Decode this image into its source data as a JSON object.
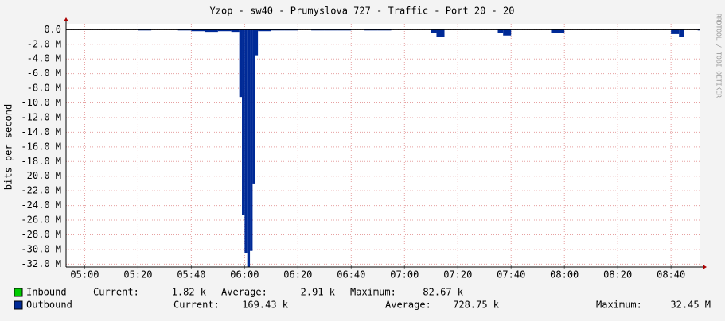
{
  "chart_data": {
    "type": "area",
    "title": "Yzop - sw40 - Prumyslova 727 - Traffic - Port 20 - 20",
    "y_label": "bits per second",
    "watermark": "RRDTOOL / TOBI OETIKER",
    "x": [
      "04:55",
      "05:00",
      "05:05",
      "05:10",
      "05:15",
      "05:20",
      "05:25",
      "05:30",
      "05:35",
      "05:40",
      "05:45",
      "05:50",
      "05:55",
      "05:58",
      "05:59",
      "06:00",
      "06:01",
      "06:02",
      "06:03",
      "06:04",
      "06:05",
      "06:10",
      "06:15",
      "06:20",
      "06:25",
      "06:30",
      "06:35",
      "06:40",
      "06:45",
      "06:50",
      "06:55",
      "07:00",
      "07:05",
      "07:10",
      "07:12",
      "07:15",
      "07:20",
      "07:25",
      "07:30",
      "07:35",
      "07:37",
      "07:40",
      "07:45",
      "07:50",
      "07:55",
      "08:00",
      "08:05",
      "08:10",
      "08:15",
      "08:20",
      "08:25",
      "08:30",
      "08:35",
      "08:40",
      "08:43",
      "08:45",
      "08:50"
    ],
    "xlim": [
      "04:53",
      "08:51"
    ],
    "xticks": [
      "05:00",
      "05:20",
      "05:40",
      "06:00",
      "06:20",
      "06:40",
      "07:00",
      "07:20",
      "07:40",
      "08:00",
      "08:20",
      "08:40"
    ],
    "ylim": [
      -32.4,
      0.8
    ],
    "yticks": [
      {
        "value": 0,
        "label": "0.0"
      },
      {
        "value": -2,
        "label": "-2.0 M"
      },
      {
        "value": -4,
        "label": "-4.0 M"
      },
      {
        "value": -6,
        "label": "-6.0 M"
      },
      {
        "value": -8,
        "label": "-8.0 M"
      },
      {
        "value": -10,
        "label": "-10.0 M"
      },
      {
        "value": -12,
        "label": "-12.0 M"
      },
      {
        "value": -14,
        "label": "-14.0 M"
      },
      {
        "value": -16,
        "label": "-16.0 M"
      },
      {
        "value": -18,
        "label": "-18.0 M"
      },
      {
        "value": -20,
        "label": "-20.0 M"
      },
      {
        "value": -22,
        "label": "-22.0 M"
      },
      {
        "value": -24,
        "label": "-24.0 M"
      },
      {
        "value": -26,
        "label": "-26.0 M"
      },
      {
        "value": -28,
        "label": "-28.0 M"
      },
      {
        "value": -30,
        "label": "-30.0 M"
      },
      {
        "value": -32,
        "label": "-32.0 M"
      }
    ],
    "grid": true,
    "series": [
      {
        "name": "Inbound",
        "color": "#00cc00",
        "values": [
          0,
          0,
          0,
          0,
          0,
          0.01,
          0,
          0,
          0,
          0.01,
          0.01,
          0,
          0.01,
          0.03,
          0.05,
          0.08,
          0.07,
          0.05,
          0.03,
          0.02,
          0.01,
          0,
          0,
          0,
          0,
          0,
          0,
          0,
          0,
          0,
          0,
          0,
          0,
          0,
          0.01,
          0,
          0,
          0,
          0,
          0,
          0.01,
          0,
          0,
          0,
          0,
          0,
          0,
          0,
          0,
          0,
          0,
          0,
          0,
          0,
          0.01,
          0,
          0
        ],
        "stats": [
          {
            "label": "Current:",
            "value": "1.82 k"
          },
          {
            "label": "Average:",
            "value": "2.91 k"
          },
          {
            "label": "Maximum:",
            "value": "82.67 k"
          }
        ]
      },
      {
        "name": "Outbound",
        "color": "#002a97",
        "values": [
          0,
          0,
          0,
          0,
          0,
          -0.1,
          0,
          0,
          -0.1,
          -0.2,
          -0.3,
          -0.2,
          -0.3,
          -9.2,
          -25.3,
          -30.5,
          -32.4,
          -30.2,
          -21.0,
          -3.5,
          -0.2,
          -0.1,
          -0.1,
          0,
          -0.1,
          -0.1,
          -0.1,
          0,
          -0.1,
          -0.1,
          0,
          0,
          0,
          -0.4,
          -1.0,
          0,
          0,
          0,
          0,
          -0.5,
          -0.8,
          0,
          0,
          0,
          -0.4,
          0,
          0,
          0,
          0,
          0,
          0,
          0,
          0,
          -0.6,
          -1.0,
          0,
          -0.1
        ],
        "stats": [
          {
            "label": "Current:",
            "value": "169.43 k"
          },
          {
            "label": "Average:",
            "value": "728.75 k"
          },
          {
            "label": "Maximum:",
            "value": "32.45 M"
          }
        ]
      }
    ]
  }
}
